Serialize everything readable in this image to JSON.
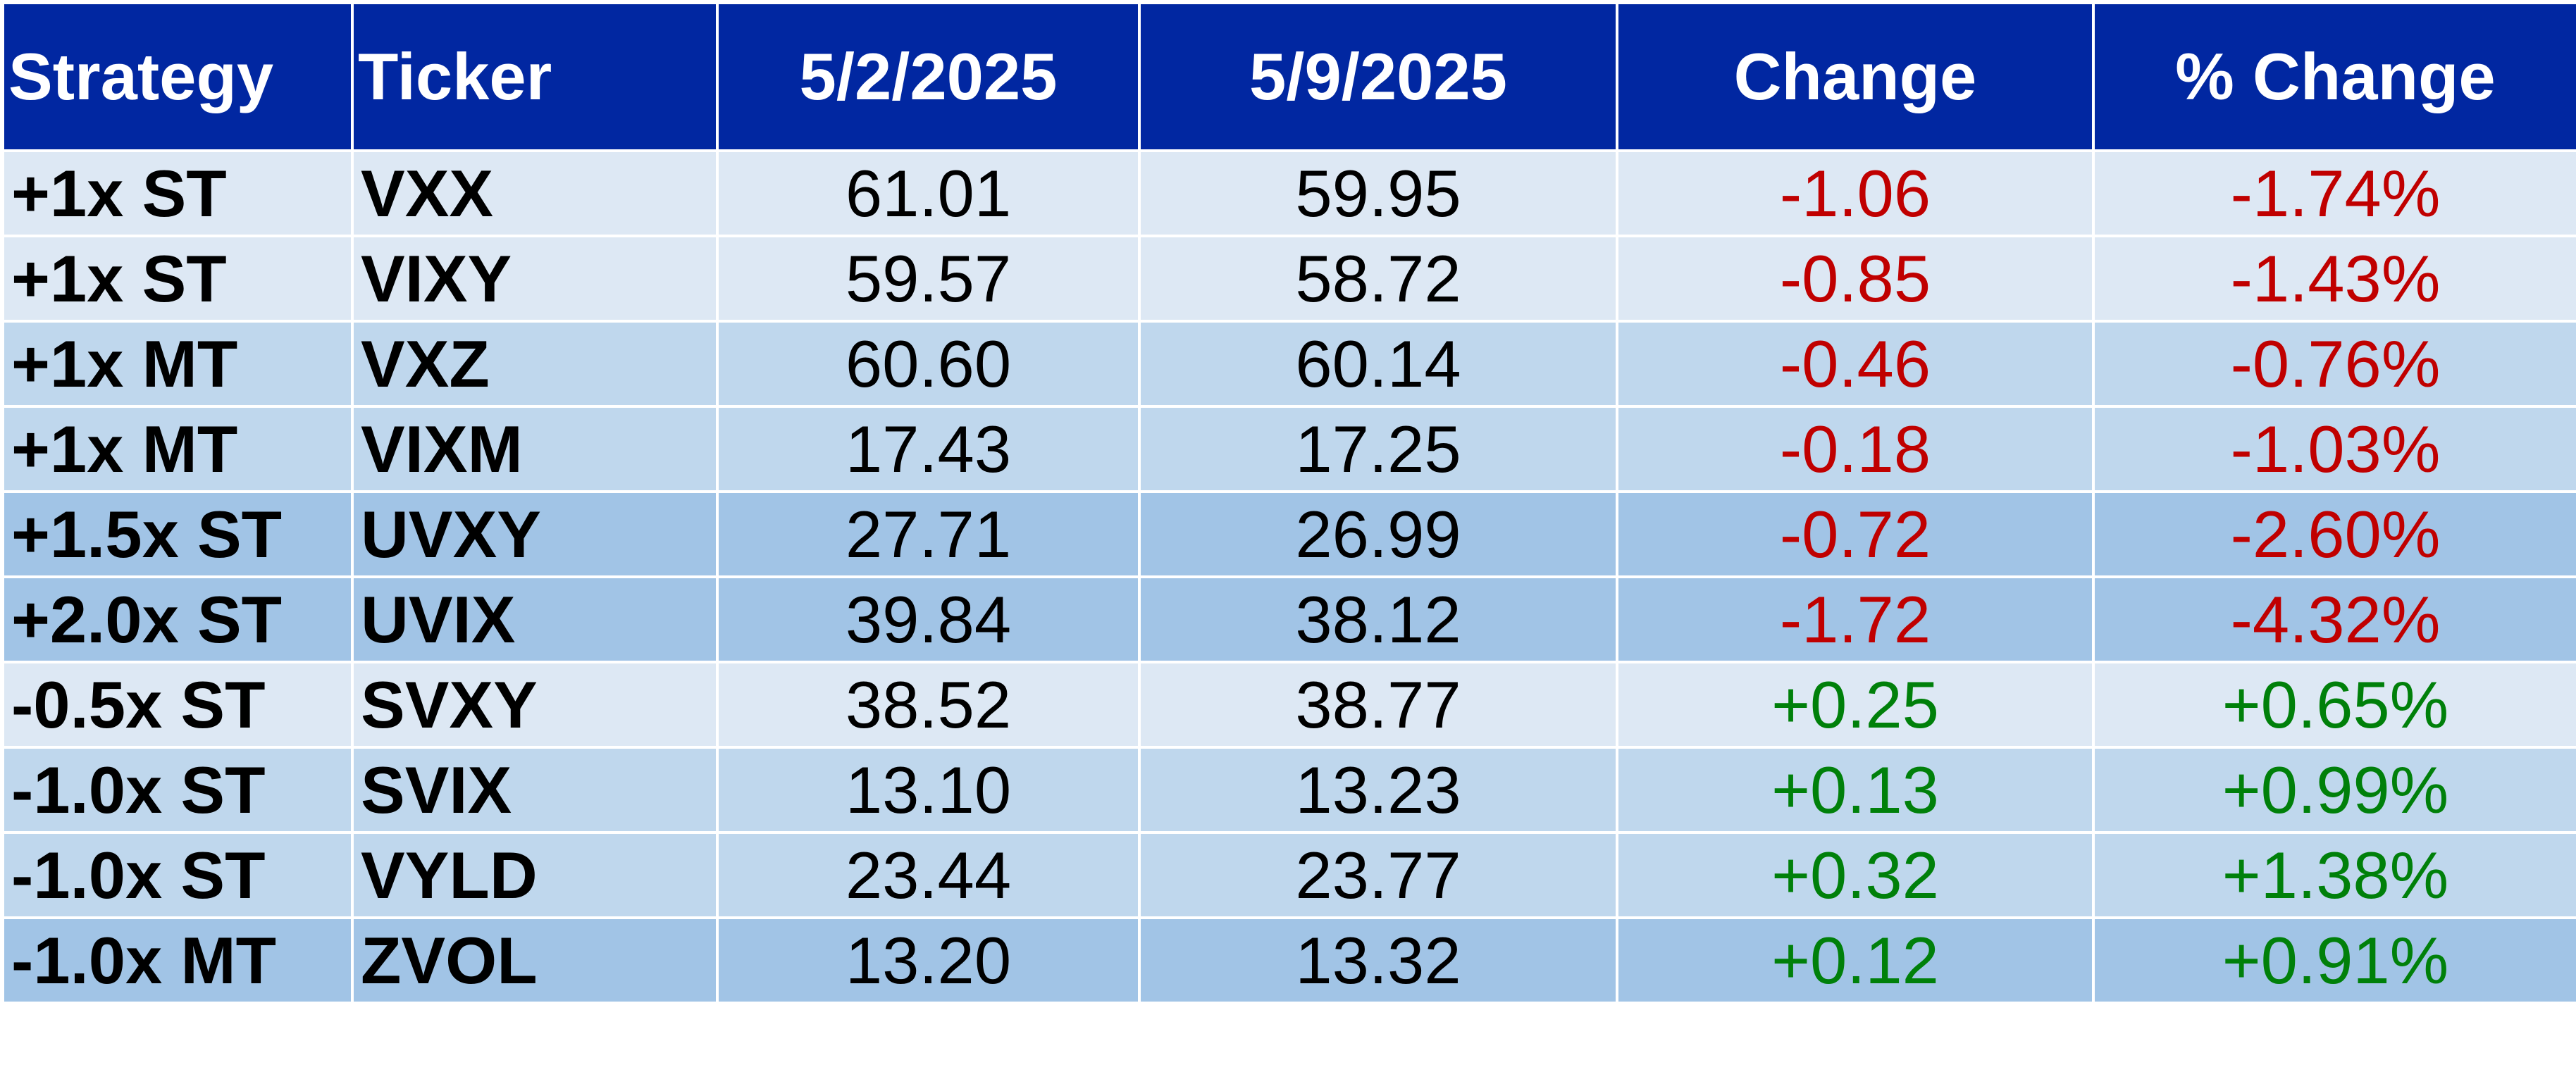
{
  "headers": [
    "Strategy",
    "Ticker",
    "5/2/2025",
    "5/9/2025",
    "Change",
    "% Change"
  ],
  "colors": {
    "header_bg": "#0127a1",
    "row_light": "#dde8f4",
    "row_mid": "#bfd7ed",
    "row_dark": "#a1c4e6",
    "negative": "#c00000",
    "positive": "#00800a"
  },
  "rows": [
    {
      "strategy": "+1x ST",
      "ticker": "VXX",
      "d1": "61.01",
      "d2": "59.95",
      "change": "-1.06",
      "pct": "-1.74%",
      "shade": "light",
      "dir": "neg"
    },
    {
      "strategy": "+1x ST",
      "ticker": "VIXY",
      "d1": "59.57",
      "d2": "58.72",
      "change": "-0.85",
      "pct": "-1.43%",
      "shade": "light",
      "dir": "neg"
    },
    {
      "strategy": "+1x MT",
      "ticker": "VXZ",
      "d1": "60.60",
      "d2": "60.14",
      "change": "-0.46",
      "pct": "-0.76%",
      "shade": "mid",
      "dir": "neg"
    },
    {
      "strategy": "+1x MT",
      "ticker": "VIXM",
      "d1": "17.43",
      "d2": "17.25",
      "change": "-0.18",
      "pct": "-1.03%",
      "shade": "mid",
      "dir": "neg"
    },
    {
      "strategy": "+1.5x ST",
      "ticker": "UVXY",
      "d1": "27.71",
      "d2": "26.99",
      "change": "-0.72",
      "pct": "-2.60%",
      "shade": "dark",
      "dir": "neg"
    },
    {
      "strategy": "+2.0x ST",
      "ticker": "UVIX",
      "d1": "39.84",
      "d2": "38.12",
      "change": "-1.72",
      "pct": "-4.32%",
      "shade": "dark",
      "dir": "neg"
    },
    {
      "strategy": "-0.5x ST",
      "ticker": "SVXY",
      "d1": "38.52",
      "d2": "38.77",
      "change": "+0.25",
      "pct": "+0.65%",
      "shade": "light",
      "dir": "pos"
    },
    {
      "strategy": "-1.0x ST",
      "ticker": "SVIX",
      "d1": "13.10",
      "d2": "13.23",
      "change": "+0.13",
      "pct": "+0.99%",
      "shade": "mid",
      "dir": "pos"
    },
    {
      "strategy": "-1.0x ST",
      "ticker": "VYLD",
      "d1": "23.44",
      "d2": "23.77",
      "change": "+0.32",
      "pct": "+1.38%",
      "shade": "mid",
      "dir": "pos"
    },
    {
      "strategy": "-1.0x MT",
      "ticker": "ZVOL",
      "d1": "13.20",
      "d2": "13.32",
      "change": "+0.12",
      "pct": "+0.91%",
      "shade": "dark",
      "dir": "pos"
    }
  ]
}
